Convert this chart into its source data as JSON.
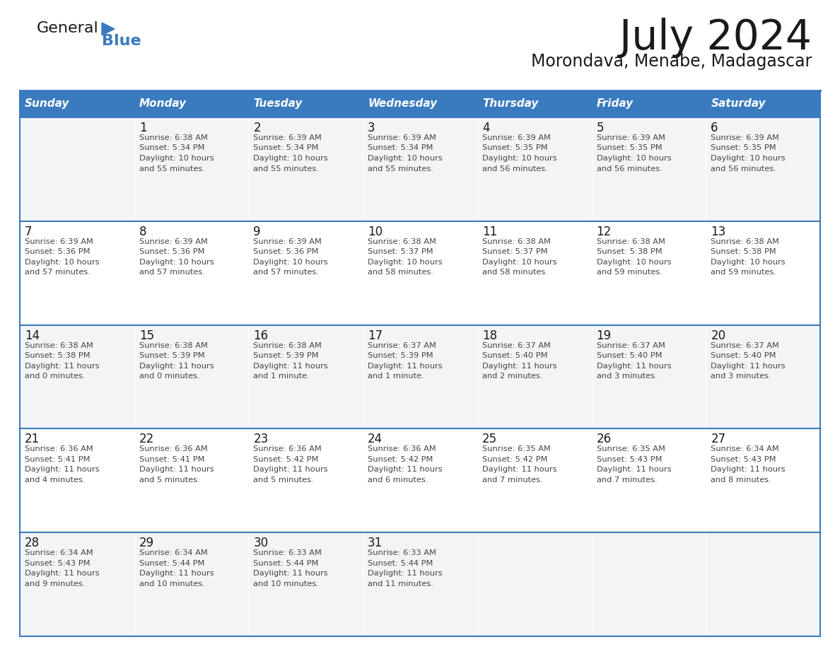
{
  "title": "July 2024",
  "subtitle": "Morondava, Menabe, Madagascar",
  "header_bg": "#3A7BBF",
  "header_text": "#FFFFFF",
  "row_bg_even": "#FFFFFF",
  "row_bg_odd": "#F0F4F8",
  "border_color": "#3A7BBF",
  "text_color": "#333333",
  "day_headers": [
    "Sunday",
    "Monday",
    "Tuesday",
    "Wednesday",
    "Thursday",
    "Friday",
    "Saturday"
  ],
  "calendar_data": [
    [
      {
        "day": "",
        "sunrise": "",
        "sunset": "",
        "daylight": ""
      },
      {
        "day": "1",
        "sunrise": "6:38 AM",
        "sunset": "5:34 PM",
        "daylight": "10 hours\nand 55 minutes."
      },
      {
        "day": "2",
        "sunrise": "6:39 AM",
        "sunset": "5:34 PM",
        "daylight": "10 hours\nand 55 minutes."
      },
      {
        "day": "3",
        "sunrise": "6:39 AM",
        "sunset": "5:34 PM",
        "daylight": "10 hours\nand 55 minutes."
      },
      {
        "day": "4",
        "sunrise": "6:39 AM",
        "sunset": "5:35 PM",
        "daylight": "10 hours\nand 56 minutes."
      },
      {
        "day": "5",
        "sunrise": "6:39 AM",
        "sunset": "5:35 PM",
        "daylight": "10 hours\nand 56 minutes."
      },
      {
        "day": "6",
        "sunrise": "6:39 AM",
        "sunset": "5:35 PM",
        "daylight": "10 hours\nand 56 minutes."
      }
    ],
    [
      {
        "day": "7",
        "sunrise": "6:39 AM",
        "sunset": "5:36 PM",
        "daylight": "10 hours\nand 57 minutes."
      },
      {
        "day": "8",
        "sunrise": "6:39 AM",
        "sunset": "5:36 PM",
        "daylight": "10 hours\nand 57 minutes."
      },
      {
        "day": "9",
        "sunrise": "6:39 AM",
        "sunset": "5:36 PM",
        "daylight": "10 hours\nand 57 minutes."
      },
      {
        "day": "10",
        "sunrise": "6:38 AM",
        "sunset": "5:37 PM",
        "daylight": "10 hours\nand 58 minutes."
      },
      {
        "day": "11",
        "sunrise": "6:38 AM",
        "sunset": "5:37 PM",
        "daylight": "10 hours\nand 58 minutes."
      },
      {
        "day": "12",
        "sunrise": "6:38 AM",
        "sunset": "5:38 PM",
        "daylight": "10 hours\nand 59 minutes."
      },
      {
        "day": "13",
        "sunrise": "6:38 AM",
        "sunset": "5:38 PM",
        "daylight": "10 hours\nand 59 minutes."
      }
    ],
    [
      {
        "day": "14",
        "sunrise": "6:38 AM",
        "sunset": "5:38 PM",
        "daylight": "11 hours\nand 0 minutes."
      },
      {
        "day": "15",
        "sunrise": "6:38 AM",
        "sunset": "5:39 PM",
        "daylight": "11 hours\nand 0 minutes."
      },
      {
        "day": "16",
        "sunrise": "6:38 AM",
        "sunset": "5:39 PM",
        "daylight": "11 hours\nand 1 minute."
      },
      {
        "day": "17",
        "sunrise": "6:37 AM",
        "sunset": "5:39 PM",
        "daylight": "11 hours\nand 1 minute."
      },
      {
        "day": "18",
        "sunrise": "6:37 AM",
        "sunset": "5:40 PM",
        "daylight": "11 hours\nand 2 minutes."
      },
      {
        "day": "19",
        "sunrise": "6:37 AM",
        "sunset": "5:40 PM",
        "daylight": "11 hours\nand 3 minutes."
      },
      {
        "day": "20",
        "sunrise": "6:37 AM",
        "sunset": "5:40 PM",
        "daylight": "11 hours\nand 3 minutes."
      }
    ],
    [
      {
        "day": "21",
        "sunrise": "6:36 AM",
        "sunset": "5:41 PM",
        "daylight": "11 hours\nand 4 minutes."
      },
      {
        "day": "22",
        "sunrise": "6:36 AM",
        "sunset": "5:41 PM",
        "daylight": "11 hours\nand 5 minutes."
      },
      {
        "day": "23",
        "sunrise": "6:36 AM",
        "sunset": "5:42 PM",
        "daylight": "11 hours\nand 5 minutes."
      },
      {
        "day": "24",
        "sunrise": "6:36 AM",
        "sunset": "5:42 PM",
        "daylight": "11 hours\nand 6 minutes."
      },
      {
        "day": "25",
        "sunrise": "6:35 AM",
        "sunset": "5:42 PM",
        "daylight": "11 hours\nand 7 minutes."
      },
      {
        "day": "26",
        "sunrise": "6:35 AM",
        "sunset": "5:43 PM",
        "daylight": "11 hours\nand 7 minutes."
      },
      {
        "day": "27",
        "sunrise": "6:34 AM",
        "sunset": "5:43 PM",
        "daylight": "11 hours\nand 8 minutes."
      }
    ],
    [
      {
        "day": "28",
        "sunrise": "6:34 AM",
        "sunset": "5:43 PM",
        "daylight": "11 hours\nand 9 minutes."
      },
      {
        "day": "29",
        "sunrise": "6:34 AM",
        "sunset": "5:44 PM",
        "daylight": "11 hours\nand 10 minutes."
      },
      {
        "day": "30",
        "sunrise": "6:33 AM",
        "sunset": "5:44 PM",
        "daylight": "11 hours\nand 10 minutes."
      },
      {
        "day": "31",
        "sunrise": "6:33 AM",
        "sunset": "5:44 PM",
        "daylight": "11 hours\nand 11 minutes."
      },
      {
        "day": "",
        "sunrise": "",
        "sunset": "",
        "daylight": ""
      },
      {
        "day": "",
        "sunrise": "",
        "sunset": "",
        "daylight": ""
      },
      {
        "day": "",
        "sunrise": "",
        "sunset": "",
        "daylight": ""
      }
    ]
  ]
}
